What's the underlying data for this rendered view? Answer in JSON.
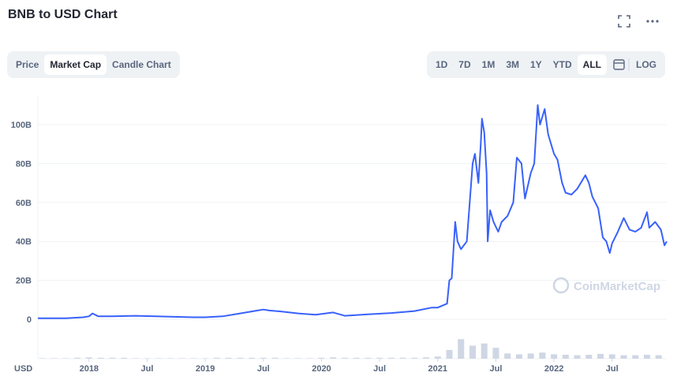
{
  "chart_data": {
    "type": "line",
    "title": "BNB to USD Chart",
    "tabs": [
      "Price",
      "Market Cap",
      "Candle Chart"
    ],
    "active_tab": 1,
    "ranges": [
      "1D",
      "7D",
      "1M",
      "3M",
      "1Y",
      "YTD",
      "ALL"
    ],
    "active_range": 6,
    "log_button": "LOG",
    "watermark": "CoinMarketCap",
    "currency": "USD",
    "color": "#3861fb",
    "x": [
      2017.56,
      2017.8,
      2017.95,
      2018.0,
      2018.03,
      2018.08,
      2018.2,
      2018.4,
      2018.5,
      2018.7,
      2018.9,
      2019.0,
      2019.15,
      2019.3,
      2019.45,
      2019.5,
      2019.55,
      2019.65,
      2019.8,
      2019.95,
      2020.1,
      2020.2,
      2020.4,
      2020.6,
      2020.8,
      2020.95,
      2021.0,
      2021.08,
      2021.1,
      2021.12,
      2021.15,
      2021.17,
      2021.2,
      2021.25,
      2021.3,
      2021.32,
      2021.35,
      2021.37,
      2021.38,
      2021.4,
      2021.42,
      2021.43,
      2021.45,
      2021.48,
      2021.52,
      2021.55,
      2021.6,
      2021.65,
      2021.68,
      2021.72,
      2021.75,
      2021.8,
      2021.83,
      2021.86,
      2021.88,
      2021.92,
      2021.95,
      2022.0,
      2022.03,
      2022.07,
      2022.1,
      2022.15,
      2022.2,
      2022.27,
      2022.3,
      2022.33,
      2022.38,
      2022.42,
      2022.45,
      2022.48,
      2022.5,
      2022.55,
      2022.6,
      2022.65,
      2022.7,
      2022.75,
      2022.8,
      2022.82,
      2022.87,
      2022.92,
      2022.95,
      2022.97
    ],
    "values": [
      0.5,
      0.5,
      1,
      1.5,
      3,
      1.5,
      1.5,
      1.8,
      1.6,
      1.3,
      1.0,
      1.0,
      1.5,
      3,
      4.5,
      5,
      4.5,
      4,
      3,
      2.3,
      3.5,
      1.8,
      2.5,
      3.2,
      4.2,
      6,
      6,
      8,
      20,
      21,
      50,
      40,
      36,
      40,
      80,
      85,
      70,
      90,
      103,
      96,
      75,
      40,
      56,
      50,
      45,
      50,
      53,
      60,
      83,
      80,
      62,
      75,
      80,
      110,
      100,
      108,
      95,
      85,
      82,
      70,
      65,
      64,
      67,
      74,
      70,
      63,
      57,
      42,
      40,
      34,
      39,
      45,
      52,
      46,
      45,
      47,
      55,
      47,
      50,
      46,
      38,
      40
    ],
    "xlim": [
      2017.56,
      2022.97
    ],
    "ylim": [
      0,
      115
    ],
    "xticks": [
      {
        "value": 2018,
        "label": "2018"
      },
      {
        "value": 2018.5,
        "label": "Jul"
      },
      {
        "value": 2019,
        "label": "2019"
      },
      {
        "value": 2019.5,
        "label": "Jul"
      },
      {
        "value": 2020,
        "label": "2020"
      },
      {
        "value": 2020.5,
        "label": "Jul"
      },
      {
        "value": 2021,
        "label": "2021"
      },
      {
        "value": 2021.5,
        "label": "Jul"
      },
      {
        "value": 2022,
        "label": "2022"
      },
      {
        "value": 2022.5,
        "label": "Jul"
      }
    ],
    "yticks": [
      {
        "value": 0,
        "label": "0"
      },
      {
        "value": 20,
        "label": "20B"
      },
      {
        "value": 40,
        "label": "40B"
      },
      {
        "value": 60,
        "label": "60B"
      },
      {
        "value": 80,
        "label": "80B"
      },
      {
        "value": 100,
        "label": "100B"
      }
    ],
    "grid": true,
    "volume": {
      "color": "#cfd6e4",
      "x": [
        2017.6,
        2017.7,
        2017.8,
        2017.9,
        2018.0,
        2018.1,
        2018.2,
        2018.3,
        2018.4,
        2018.5,
        2018.6,
        2018.7,
        2018.8,
        2018.9,
        2019.0,
        2019.1,
        2019.2,
        2019.3,
        2019.4,
        2019.5,
        2019.6,
        2019.7,
        2019.8,
        2019.9,
        2020.0,
        2020.1,
        2020.2,
        2020.3,
        2020.4,
        2020.5,
        2020.6,
        2020.7,
        2020.8,
        2020.9,
        2021.0,
        2021.1,
        2021.2,
        2021.3,
        2021.4,
        2021.5,
        2021.6,
        2021.7,
        2021.8,
        2021.9,
        2022.0,
        2022.1,
        2022.2,
        2022.3,
        2022.4,
        2022.5,
        2022.6,
        2022.7,
        2022.8,
        2022.9
      ],
      "values": [
        1,
        1,
        1,
        2,
        3,
        2,
        2,
        2,
        1,
        1,
        1,
        1,
        1,
        1,
        1,
        2,
        2,
        2,
        2,
        2,
        2,
        1,
        1,
        1,
        2,
        3,
        2,
        2,
        2,
        2,
        2,
        2,
        2,
        3,
        5,
        20,
        45,
        30,
        35,
        25,
        12,
        10,
        12,
        14,
        10,
        9,
        8,
        9,
        11,
        10,
        8,
        8,
        9,
        8
      ]
    },
    "y2lim": [
      0,
      100
    ]
  }
}
